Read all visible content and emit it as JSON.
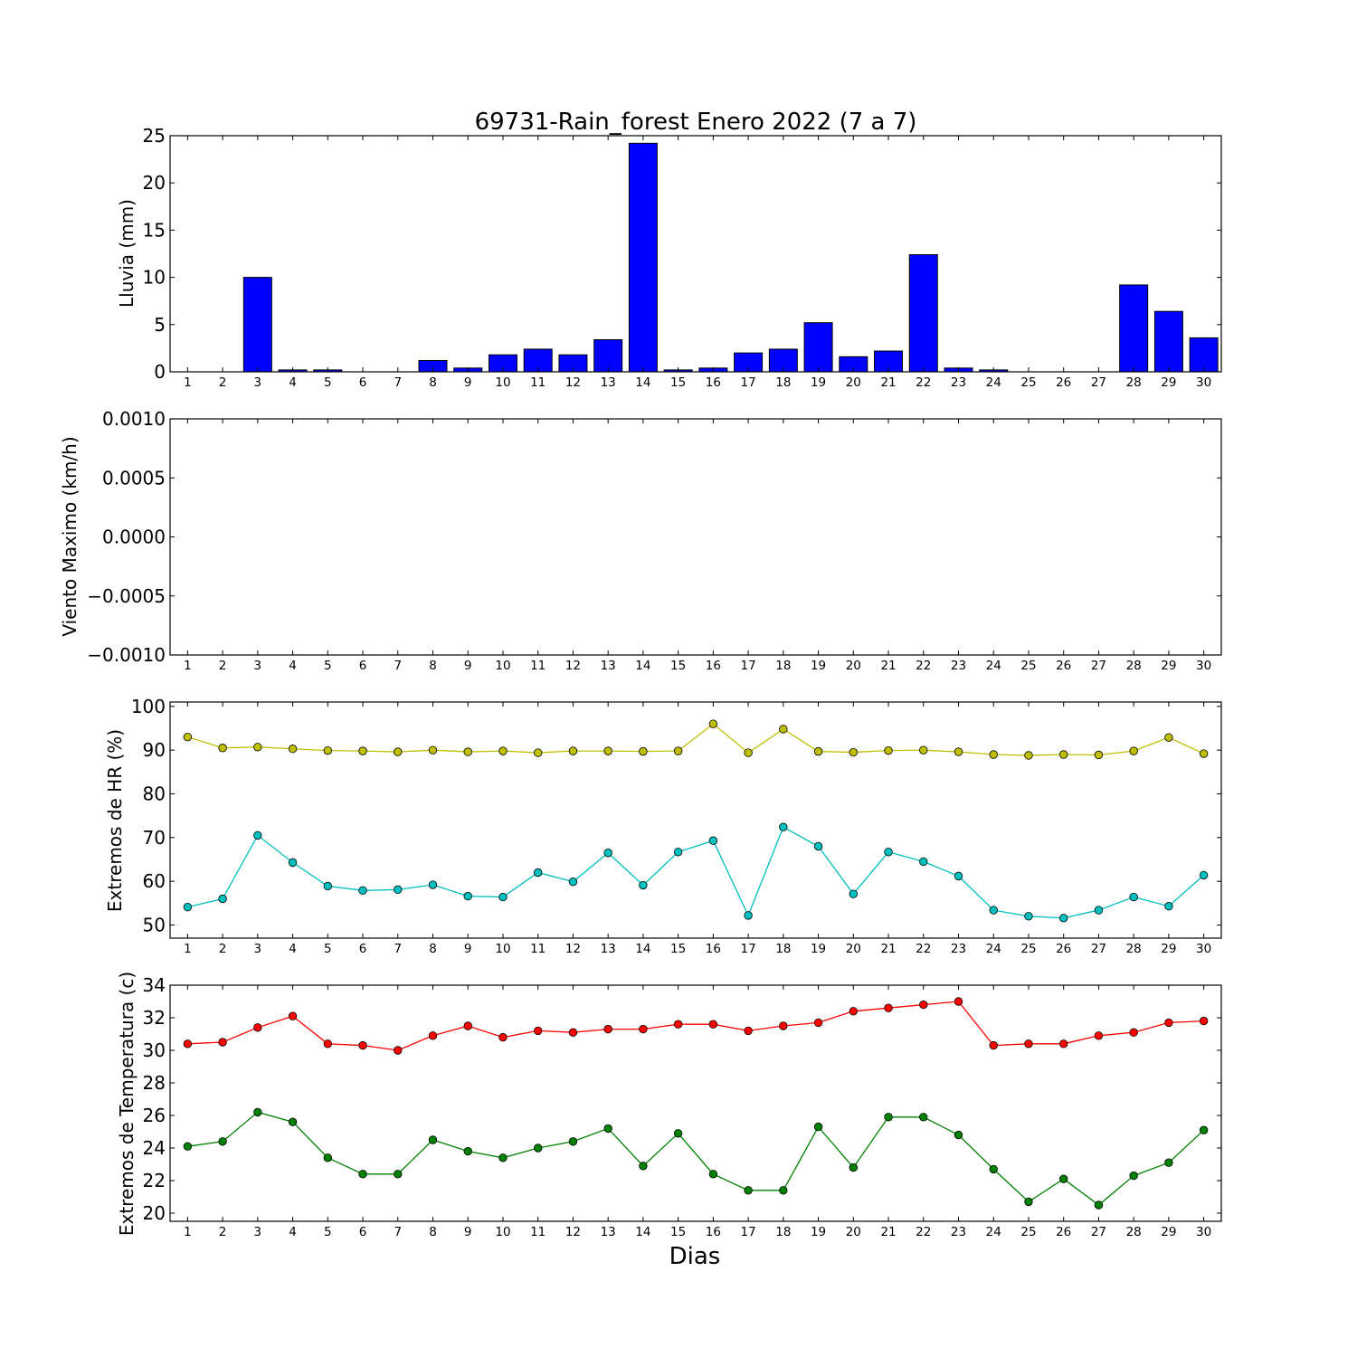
{
  "chart_data": [
    {
      "type": "bar",
      "title": "69731-Rain_forest Enero 2022  (7 a 7)",
      "ylabel": "Lluvia (mm)",
      "xlabel": "",
      "categories": [
        "1",
        "2",
        "3",
        "4",
        "5",
        "6",
        "7",
        "8",
        "9",
        "10",
        "11",
        "12",
        "13",
        "14",
        "15",
        "16",
        "17",
        "18",
        "19",
        "20",
        "21",
        "22",
        "23",
        "24",
        "25",
        "26",
        "27",
        "28",
        "29",
        "30"
      ],
      "values": [
        0,
        0,
        10.0,
        0.2,
        0.2,
        0,
        0,
        1.2,
        0.4,
        1.8,
        2.4,
        1.8,
        3.4,
        24.2,
        0.2,
        0.4,
        2.0,
        2.4,
        5.2,
        1.6,
        2.2,
        12.4,
        0.4,
        0.2,
        0,
        0,
        0,
        9.2,
        6.4,
        3.6
      ],
      "ylim": [
        0,
        25
      ],
      "yticks": [
        "0",
        "5",
        "10",
        "15",
        "20",
        "25"
      ],
      "color": "#0000ff"
    },
    {
      "type": "line",
      "title": "",
      "ylabel": "Viento Maximo (km/h)",
      "xlabel": "",
      "categories": [
        "1",
        "2",
        "3",
        "4",
        "5",
        "6",
        "7",
        "8",
        "9",
        "10",
        "11",
        "12",
        "13",
        "14",
        "15",
        "16",
        "17",
        "18",
        "19",
        "20",
        "21",
        "22",
        "23",
        "24",
        "25",
        "26",
        "27",
        "28",
        "29",
        "30"
      ],
      "series": [],
      "ylim": [
        -0.001,
        0.001
      ],
      "yticks": [
        "−0.0010",
        "−0.0005",
        "0.0000",
        "0.0005",
        "0.0010"
      ]
    },
    {
      "type": "line",
      "title": "",
      "ylabel": "Extremos de HR (%)",
      "xlabel": "",
      "categories": [
        "1",
        "2",
        "3",
        "4",
        "5",
        "6",
        "7",
        "8",
        "9",
        "10",
        "11",
        "12",
        "13",
        "14",
        "15",
        "16",
        "17",
        "18",
        "19",
        "20",
        "21",
        "22",
        "23",
        "24",
        "25",
        "26",
        "27",
        "28",
        "29",
        "30"
      ],
      "series": [
        {
          "color": "#bfbf00",
          "values": [
            93.0,
            90.5,
            90.7,
            90.3,
            89.9,
            89.8,
            89.6,
            90.0,
            89.6,
            89.8,
            89.4,
            89.8,
            89.8,
            89.7,
            89.8,
            96.0,
            89.4,
            94.8,
            89.7,
            89.5,
            89.9,
            90.0,
            89.6,
            89.0,
            88.8,
            89.0,
            88.9,
            89.8,
            92.9,
            89.2
          ]
        },
        {
          "color": "#00bfbf",
          "values": [
            54.1,
            56.0,
            70.5,
            64.3,
            58.9,
            57.9,
            58.1,
            59.2,
            56.6,
            56.4,
            62.0,
            59.9,
            66.5,
            59.1,
            66.7,
            69.3,
            52.2,
            72.4,
            68.0,
            57.1,
            66.7,
            64.5,
            61.2,
            53.4,
            52.0,
            51.6,
            53.4,
            56.4,
            54.3,
            61.4
          ]
        }
      ],
      "ylim": [
        47,
        101
      ],
      "yticks": [
        "50",
        "60",
        "70",
        "80",
        "90",
        "100"
      ]
    },
    {
      "type": "line",
      "title": "",
      "ylabel": "Extremos de Temperatura (c)",
      "xlabel": "Dias",
      "categories": [
        "1",
        "2",
        "3",
        "4",
        "5",
        "6",
        "7",
        "8",
        "9",
        "10",
        "11",
        "12",
        "13",
        "14",
        "15",
        "16",
        "17",
        "18",
        "19",
        "20",
        "21",
        "22",
        "23",
        "24",
        "25",
        "26",
        "27",
        "28",
        "29",
        "30"
      ],
      "series": [
        {
          "color": "#ff0000",
          "values": [
            30.4,
            30.5,
            31.4,
            32.1,
            30.4,
            30.3,
            30.0,
            30.9,
            31.5,
            30.8,
            31.2,
            31.1,
            31.3,
            31.3,
            31.6,
            31.6,
            31.2,
            31.5,
            31.7,
            32.4,
            32.6,
            32.8,
            33.0,
            30.3,
            30.4,
            30.4,
            30.9,
            31.1,
            31.7,
            31.8
          ]
        },
        {
          "color": "#008000",
          "values": [
            24.1,
            24.4,
            26.2,
            25.6,
            23.4,
            22.4,
            22.4,
            24.5,
            23.8,
            23.4,
            24.0,
            24.4,
            25.2,
            22.9,
            24.9,
            22.4,
            21.4,
            21.4,
            25.3,
            22.8,
            25.9,
            25.9,
            24.8,
            22.7,
            20.7,
            22.1,
            20.5,
            22.3,
            23.1,
            25.1
          ]
        }
      ],
      "ylim": [
        19.5,
        34
      ],
      "yticks": [
        "20",
        "22",
        "24",
        "26",
        "28",
        "30",
        "32",
        "34"
      ]
    }
  ]
}
